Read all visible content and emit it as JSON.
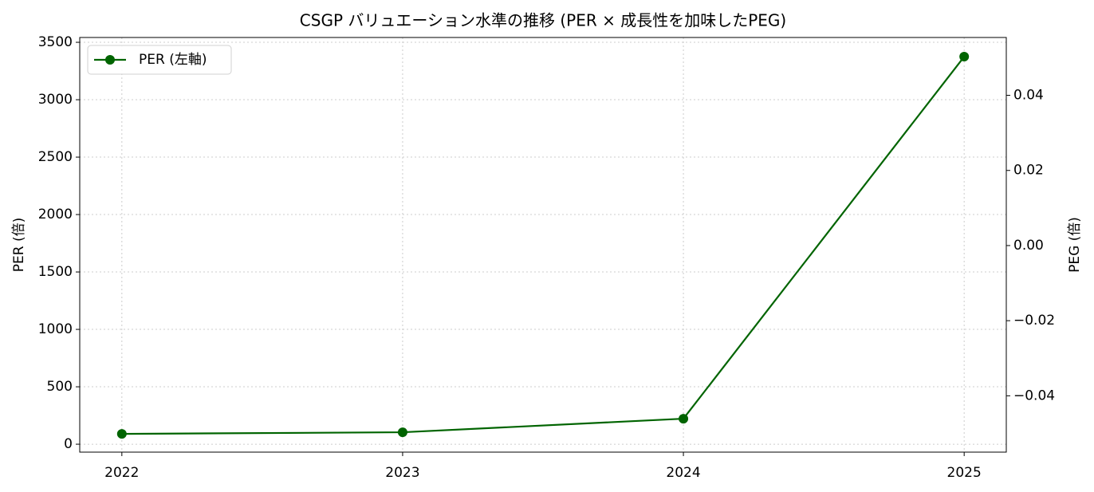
{
  "chart_data": {
    "type": "line",
    "title": "CSGP バリュエーション水準の推移 (PER × 成長性を加味したPEG)",
    "x": [
      2022,
      2023,
      2024,
      2025
    ],
    "xlim": [
      2021.85,
      2025.15
    ],
    "xticks": [
      2022,
      2023,
      2024,
      2025
    ],
    "ylabel": "PER (倍)",
    "ylim": [
      -69,
      3542
    ],
    "yticks": [
      0,
      500,
      1000,
      1500,
      2000,
      2500,
      3000,
      3500
    ],
    "y2label": "PEG (倍)",
    "y2lim": [
      -0.055,
      0.0554
    ],
    "y2ticks": [
      {
        "value": -0.04,
        "label": "−0.04"
      },
      {
        "value": -0.02,
        "label": "−0.02"
      },
      {
        "value": 0,
        "label": "0.00"
      },
      {
        "value": 0.02,
        "label": "0.02"
      },
      {
        "value": 0.04,
        "label": "0.04"
      }
    ],
    "series": [
      {
        "name": "PER (左軸)",
        "color": "#006400",
        "values": [
          90,
          104,
          222,
          3375
        ]
      }
    ],
    "grid": true,
    "legend": "upper-left"
  }
}
